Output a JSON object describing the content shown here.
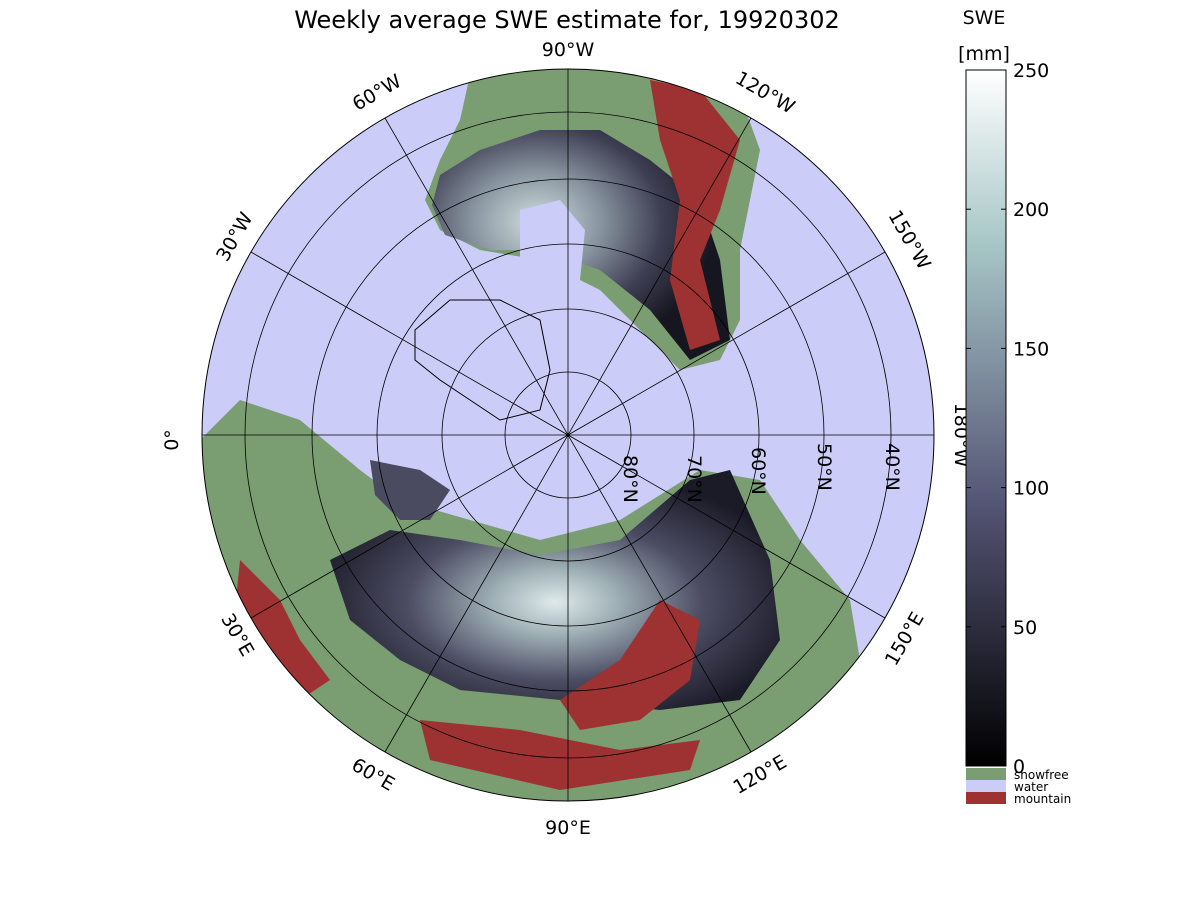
{
  "title": "Weekly average SWE estimate for, 19920302",
  "colorbar": {
    "title": "SWE",
    "unit": "[mm]",
    "ticks": [
      0,
      50,
      100,
      150,
      200,
      250
    ],
    "min": 0,
    "max": 250,
    "colormap": "bone",
    "legend": [
      {
        "label": "snowfree",
        "color": "#7a9e72"
      },
      {
        "label": "water",
        "color": "#ccccf8"
      },
      {
        "label": "mountain",
        "color": "#9e3232"
      }
    ]
  },
  "map": {
    "projection": "north-polar stereographic",
    "latitude_rings": [
      "80°N",
      "70°N",
      "60°N",
      "50°N",
      "40°N"
    ],
    "longitude_labels": [
      {
        "text": "90°W",
        "lon": -90
      },
      {
        "text": "60°W",
        "lon": -60
      },
      {
        "text": "120°W",
        "lon": -120
      },
      {
        "text": "30°W",
        "lon": -30
      },
      {
        "text": "150°W",
        "lon": -150
      },
      {
        "text": "0°",
        "lon": 0
      },
      {
        "text": "180°W",
        "lon": 180
      },
      {
        "text": "30°E",
        "lon": 30
      },
      {
        "text": "150°E",
        "lon": 150
      },
      {
        "text": "60°E",
        "lon": 60
      },
      {
        "text": "120°E",
        "lon": 120
      },
      {
        "text": "90°E",
        "lon": 90
      }
    ]
  }
}
